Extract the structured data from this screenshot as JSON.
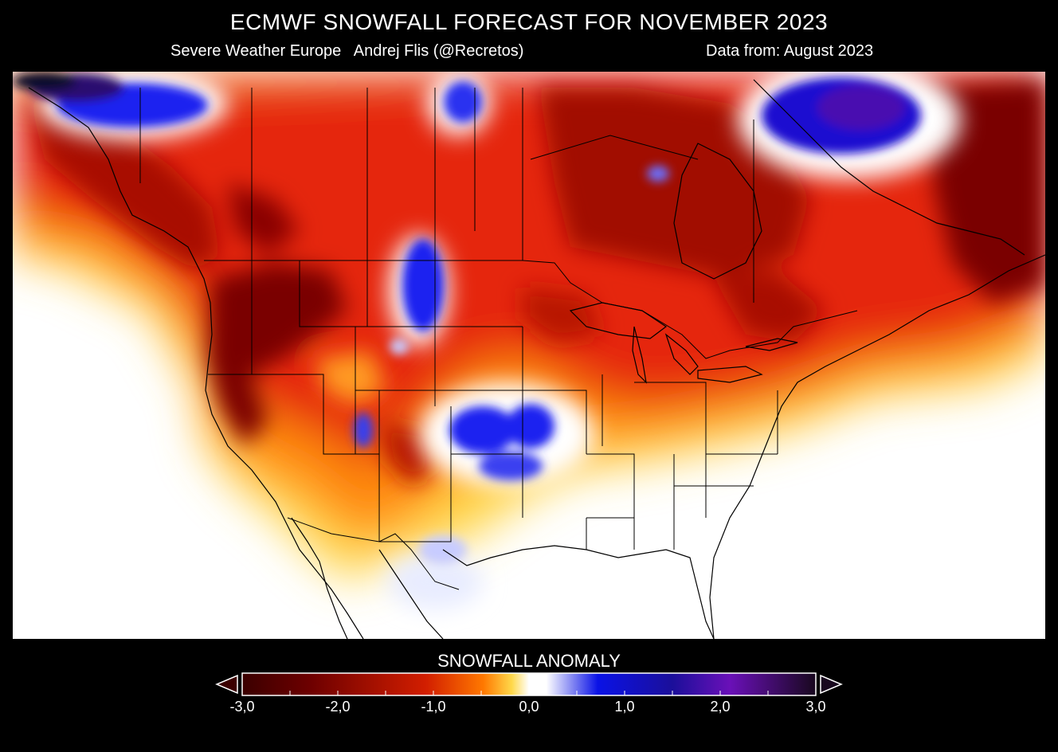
{
  "header": {
    "title": "ECMWF SNOWFALL FORECAST FOR  NOVEMBER 2023",
    "credit": "Severe Weather Europe   Andrej Flis (@Recretos)",
    "data_source": "Data from: August 2023"
  },
  "legend": {
    "title": "SNOWFALL ANOMALY",
    "ticks": [
      {
        "value": -3.0,
        "label": "-3,0"
      },
      {
        "value": -2.0,
        "label": "-2,0"
      },
      {
        "value": -1.0,
        "label": "-1,0"
      },
      {
        "value": 0.0,
        "label": "0,0"
      },
      {
        "value": 1.0,
        "label": "1,0"
      },
      {
        "value": 2.0,
        "label": "2,0"
      },
      {
        "value": 3.0,
        "label": "3,0"
      }
    ],
    "range": [
      -3.0,
      3.0
    ],
    "extends": "both",
    "colors": {
      "lowest": "#3b0000",
      "dark_red": "#6e0000",
      "red": "#d21e00",
      "orange": "#ff7800",
      "yellow": "#ffd84a",
      "white": "#ffffff",
      "blue": "#0a12e6",
      "navy": "#1b0f9a",
      "purple": "#6a10b8",
      "highest": "#18081e"
    }
  },
  "map": {
    "region": "North America",
    "layers": [
      "snowfall-anomaly-field",
      "coastlines",
      "country-borders",
      "state-province-borders"
    ]
  }
}
